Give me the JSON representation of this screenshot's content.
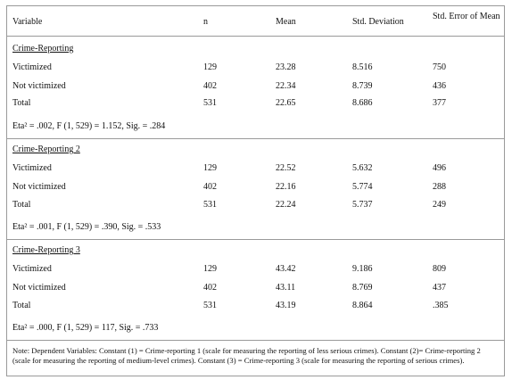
{
  "headers": {
    "variable": "Variable",
    "n": "n",
    "mean": "Mean",
    "sd": "Std. Deviation",
    "se": "Std. Error of Mean"
  },
  "sections": [
    {
      "title": "Crime-Reporting",
      "rows": [
        {
          "label": "Victimized",
          "n": "129",
          "mean": "23.28",
          "sd": "8.516",
          "se": "750"
        },
        {
          "label": "Not victimized",
          "n": "402",
          "mean": "22.34",
          "sd": "8.739",
          "se": "436"
        },
        {
          "label": "Total",
          "n": "531",
          "mean": "22.65",
          "sd": "8.686",
          "se": "377"
        }
      ],
      "stat": "Eta² = .002, F (1, 529) = 1.152, Sig. = .284"
    },
    {
      "title": "Crime-Reporting 2",
      "rows": [
        {
          "label": "Victimized",
          "n": "129",
          "mean": "22.52",
          "sd": "5.632",
          "se": "496"
        },
        {
          "label": "Not victimized",
          "n": "402",
          "mean": "22.16",
          "sd": "5.774",
          "se": "288"
        },
        {
          "label": "Total",
          "n": "531",
          "mean": "22.24",
          "sd": "5.737",
          "se": "249"
        }
      ],
      "stat": "Eta² = .001, F (1, 529) = .390, Sig. = .533"
    },
    {
      "title": "Crime-Reporting 3",
      "rows": [
        {
          "label": "Victimized",
          "n": "129",
          "mean": "43.42",
          "sd": "9.186",
          "se": "809"
        },
        {
          "label": "Not victimized",
          "n": "402",
          "mean": "43.11",
          "sd": "8.769",
          "se": "437"
        },
        {
          "label": "Total",
          "n": "531",
          "mean": "43.19",
          "sd": "8.864",
          "se": ".385"
        }
      ],
      "stat": "Eta² = .000, F (1, 529) = 117, Sig. = .733"
    }
  ],
  "note": "Note: Dependent Variables: Constant (1) = Crime-reporting 1 (scale for measuring the reporting of less serious crimes). Constant (2)= Crime-reporting 2 (scale for measuring the reporting of medium-level crimes). Constant (3) = Crime-reporting 3 (scale for measuring the reporting of serious crimes)."
}
